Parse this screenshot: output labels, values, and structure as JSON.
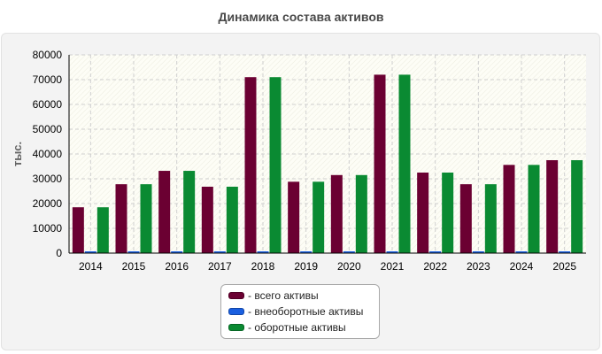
{
  "chart_data": {
    "type": "bar",
    "title": "Динамика состава активов",
    "ylabel": "тыс.",
    "xlabel": "",
    "ylim": [
      0,
      80000
    ],
    "yticks": [
      0,
      10000,
      20000,
      30000,
      40000,
      50000,
      60000,
      70000,
      80000
    ],
    "grid": true,
    "legend_position": "bottom",
    "categories": [
      "2014",
      "2015",
      "2016",
      "2017",
      "2018",
      "2019",
      "2020",
      "2021",
      "2022",
      "2023",
      "2024",
      "2025"
    ],
    "series": [
      {
        "name": "- всего активы",
        "color": "#6b0032",
        "values": [
          18500,
          27800,
          33200,
          26800,
          71000,
          28800,
          31500,
          72000,
          32500,
          27800,
          35600,
          37500
        ]
      },
      {
        "name": "- внеоборотные активы",
        "color": "#1a5fe0",
        "values": [
          0,
          0,
          0,
          0,
          0,
          0,
          0,
          0,
          0,
          0,
          0,
          0
        ]
      },
      {
        "name": "- оборотные активы",
        "color": "#0a8a32",
        "values": [
          18500,
          27800,
          33200,
          26800,
          71000,
          28800,
          31500,
          72000,
          32500,
          27800,
          35600,
          37500
        ]
      }
    ]
  }
}
